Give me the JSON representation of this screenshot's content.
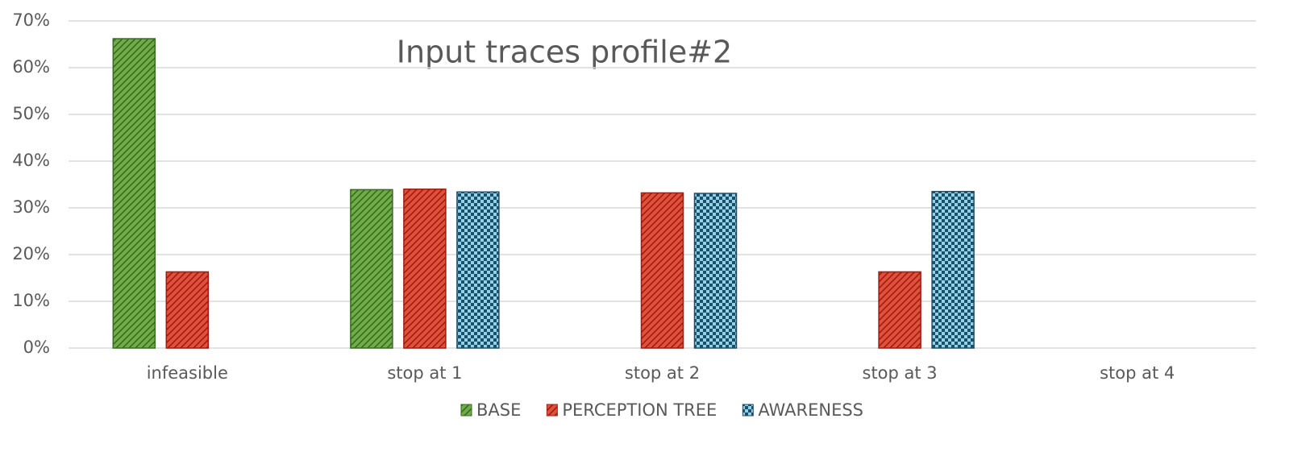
{
  "chart_data": {
    "type": "bar",
    "title": "Input traces profile#2",
    "categories": [
      "infeasible",
      "stop at 1",
      "stop at 2",
      "stop at 3",
      "stop at 4"
    ],
    "series": [
      {
        "name": "BASE",
        "color": "#70ad47",
        "edgecolor": "#3a6b23",
        "pattern": "diagonal",
        "values": [
          66.2,
          33.9,
          0,
          0,
          0
        ]
      },
      {
        "name": "PERCEPTION TREE",
        "color": "#e0503a",
        "edgecolor": "#a01c10",
        "pattern": "diagonal",
        "values": [
          16.3,
          34,
          33.2,
          16.3,
          0
        ]
      },
      {
        "name": "AWARENESS",
        "color": "#8fd3e8",
        "edgecolor": "#1f4e6b",
        "pattern": "checker",
        "values": [
          0,
          33.4,
          33.1,
          33.5,
          0
        ]
      }
    ],
    "ylim": [
      0,
      70
    ],
    "yticks": [
      {
        "value": 0,
        "label": "0%"
      },
      {
        "value": 10,
        "label": "10%"
      },
      {
        "value": 20,
        "label": "20%"
      },
      {
        "value": 30,
        "label": "30%"
      },
      {
        "value": 40,
        "label": "40%"
      },
      {
        "value": 50,
        "label": "50%"
      },
      {
        "value": 60,
        "label": "60%"
      },
      {
        "value": 70,
        "label": "70%"
      }
    ],
    "grid": true,
    "legend": "bottom"
  }
}
